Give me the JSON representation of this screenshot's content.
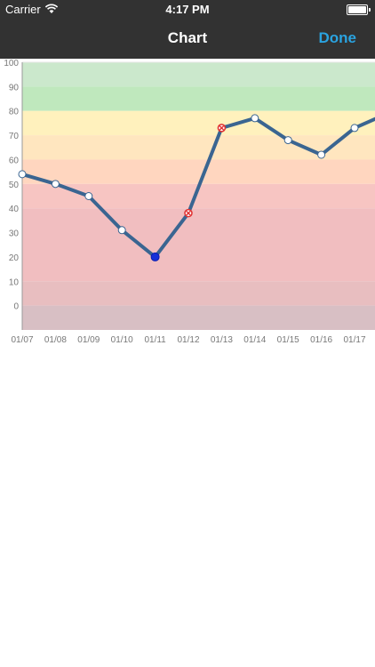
{
  "status_bar": {
    "carrier": "Carrier",
    "time": "4:17 PM"
  },
  "nav": {
    "title": "Chart",
    "done_label": "Done"
  },
  "chart_data": {
    "type": "line",
    "categories": [
      "01/07",
      "01/08",
      "01/09",
      "01/10",
      "01/11",
      "01/12",
      "01/13",
      "01/14",
      "01/15",
      "01/16",
      "01/17"
    ],
    "values": [
      54,
      50,
      45,
      31,
      20,
      38,
      73,
      77,
      68,
      62,
      73
    ],
    "continues_to": 79,
    "ylim": [
      -10,
      100
    ],
    "yticks": [
      100,
      90,
      80,
      70,
      60,
      50,
      40,
      30,
      20,
      10,
      0
    ],
    "highlight": {
      "selected_index": 4,
      "marked_indices": [
        5,
        6
      ]
    },
    "line_color": "#3a6591",
    "bands": [
      {
        "from": 90,
        "to": 100,
        "color": "#cbe8cc"
      },
      {
        "from": 80,
        "to": 90,
        "color": "#bfe8bd"
      },
      {
        "from": 70,
        "to": 80,
        "color": "#fff1bd"
      },
      {
        "from": 60,
        "to": 70,
        "color": "#ffe6bf"
      },
      {
        "from": 50,
        "to": 60,
        "color": "#ffd6bf"
      },
      {
        "from": 40,
        "to": 50,
        "color": "#f7c5c2"
      },
      {
        "from": 10,
        "to": 40,
        "color": "#f1bec0"
      },
      {
        "from": 0,
        "to": 10,
        "color": "#e8bec0"
      },
      {
        "from": -10,
        "to": 0,
        "color": "#d8bfc4"
      }
    ],
    "xlabel": "",
    "ylabel": "",
    "title": "",
    "grid": false
  }
}
